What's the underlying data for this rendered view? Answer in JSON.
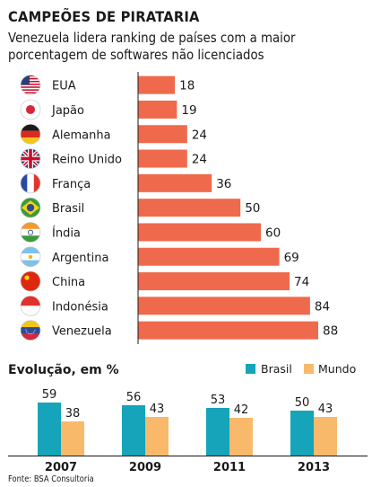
{
  "title": "CAMPEÕES DE PIRATARIA",
  "subtitle": "Venezuela lidera ranking de países com a maior porcentagem de softwares não licenciados",
  "source": "Fonte: BSA Consultoria",
  "colors": {
    "ranking_bar": "#ef6a4c",
    "brasil": "#15a4b9",
    "mundo": "#f8b96b",
    "axis": "#1a1a1a"
  },
  "chart_data": [
    {
      "type": "bar",
      "orientation": "horizontal",
      "categories": [
        "EUA",
        "Japão",
        "Alemanha",
        "Reino Unido",
        "França",
        "Brasil",
        "Índia",
        "Argentina",
        "China",
        "Indonésia",
        "Venezuela"
      ],
      "values": [
        18,
        19,
        24,
        24,
        36,
        50,
        60,
        69,
        74,
        84,
        88
      ],
      "flag_icons": [
        "flag-usa-icon",
        "flag-japan-icon",
        "flag-germany-icon",
        "flag-uk-icon",
        "flag-france-icon",
        "flag-brazil-icon",
        "flag-india-icon",
        "flag-argentina-icon",
        "flag-china-icon",
        "flag-indonesia-icon",
        "flag-venezuela-icon"
      ],
      "xlim": [
        0,
        88
      ],
      "grid": false
    },
    {
      "type": "bar",
      "title": "Evolução, em %",
      "categories": [
        "2007",
        "2009",
        "2011",
        "2013"
      ],
      "series": [
        {
          "name": "Brasil",
          "values": [
            59,
            56,
            53,
            50
          ]
        },
        {
          "name": "Mundo",
          "values": [
            38,
            43,
            42,
            43
          ]
        }
      ],
      "ylim": [
        0,
        70
      ],
      "legend": "top-right",
      "grid": false
    }
  ]
}
